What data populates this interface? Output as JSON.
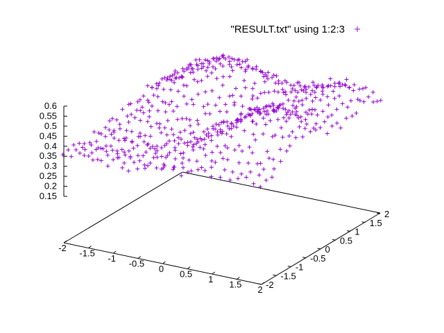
{
  "chart_data": {
    "type": "scatter",
    "subtype": "3d-scatter",
    "title": "",
    "xlabel": "",
    "ylabel": "",
    "zlabel": "",
    "xlim": [
      -2,
      2
    ],
    "ylim": [
      -2,
      2
    ],
    "zlim": [
      0.15,
      0.6
    ],
    "x_ticks": [
      "-2",
      "-1.5",
      "-1",
      "-0.5",
      "0",
      "0.5",
      "1",
      "1.5",
      "2"
    ],
    "y_ticks": [
      "-2",
      "-1.5",
      "-1",
      "-0.5",
      "0",
      "0.5",
      "1",
      "1.5",
      "2"
    ],
    "z_ticks": [
      "0.15",
      "0.2",
      "0.25",
      "0.3",
      "0.35",
      "0.4",
      "0.45",
      "0.5",
      "0.55",
      "0.6"
    ],
    "grid": false,
    "legend": {
      "position": "top-right",
      "entries": [
        "\"RESULT.txt\" using 1:2:3"
      ]
    },
    "series": [
      {
        "name": "\"RESULT.txt\" using 1:2:3",
        "marker": "+",
        "color": "#9400d3",
        "grid_x": {
          "start": -2,
          "stop": 2,
          "count": 25
        },
        "grid_y": {
          "start": -2,
          "stop": 2,
          "count": 25
        },
        "surface": "z ≈ 0.34 + 0.22·exp(-((x+0.7)²+(y-1.2)²)/1.4) + 0.22·exp(-((x-1.3)²+(y+0.6)²)/1.4) + 0.18·exp(-((x-1.5)²+(y-1.5)²)/0.8) - 0.03·exp(-(x²+y²)/0.6)",
        "noise_amplitude": 0.02
      }
    ]
  }
}
